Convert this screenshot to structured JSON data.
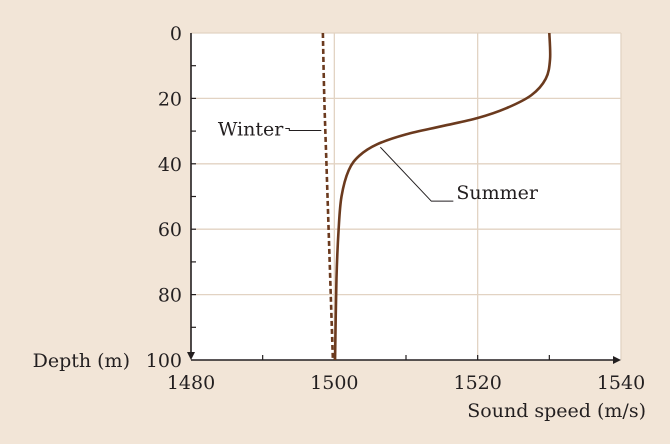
{
  "chart_data": {
    "type": "line",
    "xlabel": "Sound speed (m/s)",
    "ylabel": "Depth (m)",
    "xlim": [
      1480,
      1540
    ],
    "ylim": [
      100,
      0
    ],
    "xticks": [
      1480,
      1500,
      1520,
      1540
    ],
    "yticks": [
      0,
      20,
      40,
      60,
      80,
      100
    ],
    "grid": true,
    "colors": {
      "background": "#f2e5d7",
      "plot": "#ffffff",
      "grid": "#e2d3c3",
      "line": "#6b3a1e",
      "axis": "#231f20"
    },
    "series": [
      {
        "name": "Winter",
        "style": "dashed",
        "points": [
          [
            1498.4,
            0
          ],
          [
            1498.6,
            20
          ],
          [
            1498.9,
            40
          ],
          [
            1499.2,
            60
          ],
          [
            1499.5,
            80
          ],
          [
            1499.8,
            100
          ]
        ]
      },
      {
        "name": "Summer",
        "style": "solid",
        "points": [
          [
            1530.0,
            0
          ],
          [
            1530.1,
            8
          ],
          [
            1529.5,
            14
          ],
          [
            1527.5,
            19
          ],
          [
            1524.0,
            23
          ],
          [
            1520.0,
            26
          ],
          [
            1515.0,
            28.5
          ],
          [
            1510.0,
            31
          ],
          [
            1506.0,
            34
          ],
          [
            1503.5,
            37.5
          ],
          [
            1502.0,
            42
          ],
          [
            1501.0,
            50
          ],
          [
            1500.6,
            60
          ],
          [
            1500.3,
            75
          ],
          [
            1500.1,
            100
          ]
        ]
      }
    ],
    "annotations": [
      {
        "text": "Winter",
        "series": "Winter",
        "at_depth": 29.5
      },
      {
        "text": "Summer",
        "series": "Summer",
        "at_depth": 34
      }
    ]
  }
}
